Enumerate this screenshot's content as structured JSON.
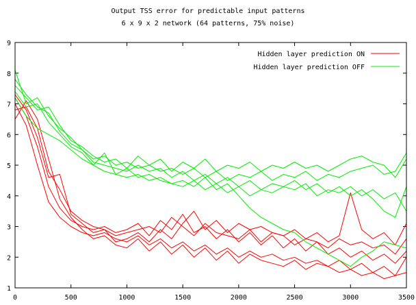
{
  "chart_data": {
    "type": "line",
    "title": "Output TSS error for predictable input patterns",
    "subtitle": "6 x 9 x 2 network (64 patterns, 75% noise)",
    "xlabel": "",
    "ylabel": "",
    "xlim": [
      0,
      3500
    ],
    "ylim": [
      1,
      9
    ],
    "x_ticks": [
      0,
      500,
      1000,
      1500,
      2000,
      2500,
      3000,
      3500
    ],
    "y_ticks": [
      1,
      2,
      3,
      4,
      5,
      6,
      7,
      8,
      9
    ],
    "grid": false,
    "legend_position": "top-right",
    "colors": {
      "on": "#ff0000",
      "off": "#00ee00"
    },
    "legend": [
      {
        "label": "Hidden layer prediction ON",
        "color": "#ff0000"
      },
      {
        "label": "Hidden layer prediction OFF",
        "color": "#00ee00"
      }
    ],
    "series": [
      {
        "name": "Hidden layer prediction ON",
        "group": "on",
        "x": [
          0,
          100,
          200,
          300,
          400,
          500,
          600,
          700,
          800,
          900,
          1000,
          1100,
          1200,
          1300,
          1400,
          1500,
          1600,
          1700,
          1800,
          1900,
          2000,
          2100,
          2200,
          2300,
          2400,
          2500,
          2600,
          2700,
          2800,
          2900,
          3000,
          3100,
          3200,
          3300,
          3400,
          3500
        ],
        "y": [
          7.0,
          6.3,
          5.0,
          3.8,
          3.3,
          3.0,
          2.8,
          2.7,
          2.8,
          2.6,
          2.5,
          2.7,
          2.4,
          2.6,
          2.3,
          2.5,
          2.2,
          2.4,
          2.1,
          2.3,
          2.0,
          2.2,
          2.0,
          2.1,
          1.9,
          2.0,
          1.8,
          1.9,
          1.7,
          1.9,
          1.6,
          1.8,
          1.5,
          1.7,
          1.4,
          2.0
        ]
      },
      {
        "group": "on",
        "x": [
          0,
          100,
          200,
          300,
          400,
          500,
          600,
          700,
          800,
          900,
          1000,
          1100,
          1200,
          1300,
          1400,
          1500,
          1600,
          1700,
          1800,
          1900,
          2000,
          2100,
          2200,
          2300,
          2400,
          2500,
          2600,
          2700,
          2800,
          2900,
          3000,
          3100,
          3200,
          3300,
          3400,
          3500
        ],
        "y": [
          7.2,
          6.6,
          5.6,
          4.3,
          3.6,
          3.2,
          3.0,
          2.9,
          3.0,
          2.8,
          2.9,
          3.1,
          2.7,
          3.2,
          2.9,
          3.4,
          2.8,
          3.0,
          2.6,
          2.9,
          2.5,
          2.8,
          2.4,
          2.7,
          2.3,
          2.6,
          2.2,
          2.5,
          2.1,
          2.3,
          2.0,
          2.2,
          1.9,
          2.1,
          1.8,
          2.2
        ]
      },
      {
        "group": "on",
        "x": [
          0,
          100,
          200,
          300,
          400,
          500,
          600,
          700,
          800,
          900,
          1000,
          1100,
          1200,
          1300,
          1400,
          1500,
          1600,
          1700,
          1800,
          1900,
          2000,
          2100,
          2200,
          2300,
          2400,
          2500,
          2600,
          2700,
          2800,
          2900,
          3000,
          3100,
          3200,
          3300,
          3400,
          3500
        ],
        "y": [
          6.8,
          6.9,
          6.2,
          4.8,
          4.2,
          3.5,
          3.2,
          3.0,
          2.9,
          2.7,
          2.8,
          2.9,
          3.0,
          2.8,
          3.3,
          3.0,
          2.7,
          3.1,
          2.8,
          2.7,
          2.6,
          2.9,
          2.5,
          2.8,
          2.7,
          2.4,
          2.6,
          2.5,
          2.3,
          2.6,
          2.4,
          2.5,
          2.3,
          2.4,
          2.1,
          2.6
        ]
      },
      {
        "group": "on",
        "x": [
          0,
          100,
          200,
          300,
          400,
          500,
          600,
          700,
          800,
          900,
          1000,
          1100,
          1200,
          1300,
          1400,
          1500,
          1600,
          1700,
          1800,
          1900,
          2000,
          2100,
          2200,
          2300,
          2400,
          2500,
          2600,
          2700,
          2800,
          2900,
          3000,
          3100,
          3200,
          3300,
          3400,
          3500
        ],
        "y": [
          7.3,
          6.8,
          5.9,
          4.6,
          4.7,
          3.4,
          3.1,
          2.8,
          2.9,
          2.5,
          2.6,
          2.8,
          2.5,
          2.9,
          2.6,
          3.1,
          3.5,
          2.9,
          3.2,
          2.8,
          3.1,
          2.9,
          3.0,
          2.8,
          2.7,
          2.9,
          2.6,
          2.8,
          2.5,
          2.7,
          4.1,
          2.9,
          2.6,
          2.8,
          2.4,
          3.1
        ]
      },
      {
        "group": "on",
        "x": [
          0,
          100,
          200,
          300,
          400,
          500,
          600,
          700,
          800,
          900,
          1000,
          1100,
          1200,
          1300,
          1400,
          1500,
          1600,
          1700,
          1800,
          1900,
          2000,
          2100,
          2200,
          2300,
          2400,
          2500,
          2600,
          2700,
          2800,
          2900,
          3000,
          3100,
          3200,
          3300,
          3400,
          3500
        ],
        "y": [
          6.5,
          7.1,
          6.5,
          5.2,
          3.9,
          3.3,
          2.9,
          2.6,
          2.7,
          2.4,
          2.3,
          2.6,
          2.2,
          2.5,
          2.1,
          2.4,
          2.0,
          2.3,
          1.9,
          2.2,
          1.8,
          2.1,
          1.9,
          1.8,
          1.7,
          1.9,
          1.6,
          1.8,
          1.7,
          1.5,
          1.6,
          1.4,
          1.5,
          1.3,
          1.4,
          1.5
        ]
      },
      {
        "name": "Hidden layer prediction OFF",
        "group": "off",
        "x": [
          0,
          100,
          200,
          300,
          400,
          500,
          600,
          700,
          800,
          900,
          1000,
          1100,
          1200,
          1300,
          1400,
          1500,
          1600,
          1700,
          1800,
          1900,
          2000,
          2100,
          2200,
          2300,
          2400,
          2500,
          2600,
          2700,
          2800,
          2900,
          3000,
          3100,
          3200,
          3300,
          3400,
          3500
        ],
        "y": [
          8.1,
          7.0,
          7.2,
          6.6,
          6.2,
          5.9,
          5.5,
          5.2,
          5.3,
          5.0,
          5.1,
          4.9,
          5.0,
          4.8,
          4.9,
          4.7,
          4.9,
          4.6,
          4.8,
          4.5,
          4.7,
          4.6,
          4.8,
          4.5,
          4.7,
          4.6,
          4.8,
          4.5,
          4.7,
          4.6,
          4.8,
          4.9,
          5.0,
          4.7,
          4.8,
          5.4
        ]
      },
      {
        "group": "off",
        "x": [
          0,
          100,
          200,
          300,
          400,
          500,
          600,
          700,
          800,
          900,
          1000,
          1100,
          1200,
          1300,
          1400,
          1500,
          1600,
          1700,
          1800,
          1900,
          2000,
          2100,
          2200,
          2300,
          2400,
          2500,
          2600,
          2700,
          2800,
          2900,
          3000,
          3100,
          3200,
          3300,
          3400,
          3500
        ],
        "y": [
          7.6,
          7.2,
          6.8,
          6.9,
          6.3,
          5.8,
          5.6,
          5.3,
          5.1,
          5.2,
          4.9,
          5.3,
          5.0,
          5.2,
          4.8,
          5.1,
          4.9,
          5.2,
          4.8,
          5.0,
          4.9,
          5.1,
          4.8,
          5.0,
          4.9,
          5.1,
          4.9,
          5.0,
          4.8,
          5.0,
          5.2,
          5.3,
          5.1,
          5.0,
          4.6,
          5.2
        ]
      },
      {
        "group": "off",
        "x": [
          0,
          100,
          200,
          300,
          400,
          500,
          600,
          700,
          800,
          900,
          1000,
          1100,
          1200,
          1300,
          1400,
          1500,
          1600,
          1700,
          1800,
          1900,
          2000,
          2100,
          2200,
          2300,
          2400,
          2500,
          2600,
          2700,
          2800,
          2900,
          3000,
          3100,
          3200,
          3300,
          3400,
          3500
        ],
        "y": [
          7.4,
          6.9,
          7.0,
          6.4,
          6.0,
          5.6,
          5.4,
          5.0,
          5.4,
          4.7,
          4.9,
          4.6,
          4.7,
          4.5,
          4.4,
          4.3,
          4.5,
          4.2,
          4.4,
          4.1,
          4.3,
          4.0,
          4.2,
          4.1,
          4.3,
          4.2,
          4.4,
          4.0,
          4.2,
          4.1,
          4.3,
          4.0,
          4.2,
          3.9,
          4.1,
          3.5
        ]
      },
      {
        "group": "off",
        "x": [
          0,
          100,
          200,
          300,
          400,
          500,
          600,
          700,
          800,
          900,
          1000,
          1100,
          1200,
          1300,
          1400,
          1500,
          1600,
          1700,
          1800,
          1900,
          2000,
          2100,
          2200,
          2300,
          2400,
          2500,
          2600,
          2700,
          2800,
          2900,
          3000,
          3100,
          3200,
          3300,
          3400,
          3500
        ],
        "y": [
          7.8,
          7.3,
          6.9,
          6.7,
          6.1,
          5.7,
          5.5,
          5.1,
          5.0,
          4.9,
          4.8,
          5.0,
          4.8,
          4.9,
          4.6,
          4.8,
          4.5,
          4.7,
          4.4,
          4.6,
          4.3,
          4.5,
          4.2,
          4.4,
          4.3,
          4.5,
          4.2,
          4.4,
          4.1,
          4.3,
          4.0,
          4.2,
          3.9,
          3.5,
          3.3,
          4.3
        ]
      },
      {
        "group": "off",
        "x": [
          0,
          100,
          200,
          300,
          400,
          500,
          600,
          700,
          800,
          900,
          1000,
          1100,
          1200,
          1300,
          1400,
          1500,
          1600,
          1700,
          1800,
          1900,
          2000,
          2100,
          2200,
          2300,
          2400,
          2500,
          2600,
          2700,
          2800,
          2900,
          3000,
          3100,
          3200,
          3300,
          3400,
          3500
        ],
        "y": [
          7.2,
          6.6,
          6.2,
          6.0,
          5.8,
          5.5,
          5.2,
          5.0,
          4.8,
          4.7,
          4.6,
          4.7,
          4.5,
          4.6,
          4.4,
          4.5,
          4.3,
          4.6,
          4.2,
          4.4,
          4.0,
          3.6,
          3.3,
          3.1,
          2.9,
          2.8,
          2.5,
          2.3,
          2.1,
          1.9,
          1.7,
          2.0,
          2.2,
          2.5,
          2.4,
          2.3
        ]
      }
    ]
  }
}
